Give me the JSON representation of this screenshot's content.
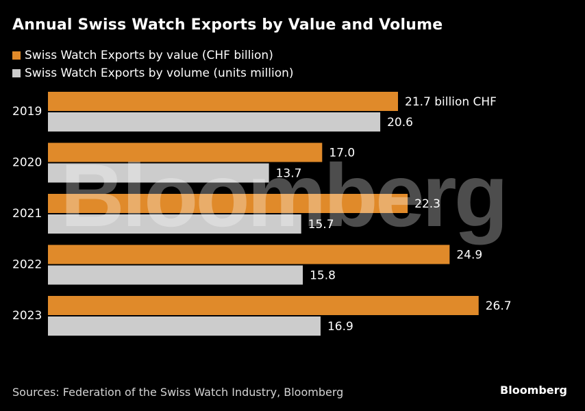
{
  "chart_data": {
    "type": "bar",
    "orientation": "horizontal",
    "title": "Annual Swiss Watch Exports by Value and Volume",
    "categories": [
      "2019",
      "2020",
      "2021",
      "2022",
      "2023"
    ],
    "series": [
      {
        "name": "Swiss Watch Exports by value (CHF billion)",
        "color": "#e08a2a",
        "values": [
          21.7,
          17.0,
          22.3,
          24.9,
          26.7
        ],
        "labels": [
          "21.7 billion CHF",
          "17.0",
          "22.3",
          "24.9",
          "26.7"
        ]
      },
      {
        "name": "Swiss Watch Exports by volume (units million)",
        "color": "#cccccc",
        "values": [
          20.6,
          13.7,
          15.7,
          15.8,
          16.9
        ],
        "labels": [
          "20.6",
          "13.7",
          "15.7",
          "15.8",
          "16.9"
        ]
      }
    ],
    "xlim": [
      0,
      30
    ],
    "grid": false,
    "legend": "top-left"
  },
  "source": "Sources: Federation of the Swiss Watch Industry, Bloomberg",
  "brand": "Bloomberg",
  "watermark": "Bloomberg"
}
